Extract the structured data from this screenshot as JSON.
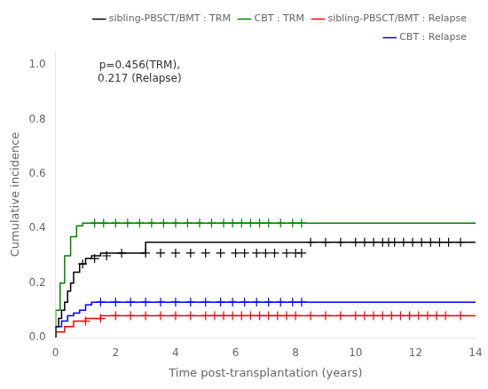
{
  "chart_data": {
    "type": "line",
    "xlabel": "Time post-transplantation (years)",
    "ylabel": "Cumulative incidence",
    "annotation": "p=0.456(TRM),\n0.217 (Relapse)",
    "xlim": [
      0,
      14
    ],
    "ylim": [
      0,
      1.05
    ],
    "xticks": [
      0,
      2,
      4,
      6,
      8,
      10,
      12,
      14
    ],
    "yticks": [
      {
        "value": 0.0,
        "label": "0.0"
      },
      0.2,
      0.4,
      0.6,
      0.8,
      {
        "value": 1.0,
        "label": "1.0"
      }
    ],
    "grid": false,
    "legend": "upper right",
    "series": [
      {
        "name": "sibling-PBSCT/BMT : TRM",
        "color": "black",
        "line_style": "step",
        "marker": "plus",
        "x": [
          0,
          0.1,
          0.2,
          0.3,
          0.4,
          0.5,
          0.6,
          0.8,
          1.0,
          1.2,
          1.5,
          1.8,
          2.0,
          2.5,
          3.0,
          8.3,
          14.0
        ],
        "values": [
          0,
          0.04,
          0.07,
          0.1,
          0.13,
          0.17,
          0.2,
          0.24,
          0.27,
          0.29,
          0.3,
          0.31,
          0.31,
          0.31,
          0.31,
          0.35,
          0.35
        ],
        "censor_x": [
          0.9,
          1.3,
          1.7,
          2.2,
          3.0,
          3.5,
          4.0,
          4.5,
          5.0,
          5.5,
          6.0,
          6.3,
          6.7,
          7.0,
          7.3,
          7.7,
          8.0,
          8.2,
          8.5,
          9.0,
          9.5,
          10.0,
          10.3,
          10.6,
          10.9,
          11.1,
          11.3,
          11.6,
          11.9,
          12.2,
          12.5,
          12.8,
          13.1,
          13.5
        ],
        "censor_values": [
          0.27,
          0.29,
          0.3,
          0.31,
          0.31,
          0.31,
          0.31,
          0.31,
          0.31,
          0.31,
          0.31,
          0.31,
          0.31,
          0.31,
          0.31,
          0.31,
          0.31,
          0.31,
          0.35,
          0.35,
          0.35,
          0.35,
          0.35,
          0.35,
          0.35,
          0.35,
          0.35,
          0.35,
          0.35,
          0.35,
          0.35,
          0.35,
          0.35,
          0.35
        ]
      },
      {
        "name": "CBT : TRM",
        "color": "green",
        "line_style": "step",
        "marker": "plus",
        "x": [
          0,
          0.15,
          0.3,
          0.5,
          0.7,
          0.9,
          1.0,
          1.2,
          14.0
        ],
        "values": [
          0,
          0.1,
          0.2,
          0.3,
          0.37,
          0.41,
          0.42,
          0.42,
          0.42
        ],
        "censor_x": [
          1.3,
          1.6,
          2.0,
          2.4,
          2.8,
          3.2,
          3.6,
          4.0,
          4.4,
          4.8,
          5.2,
          5.6,
          5.9,
          6.2,
          6.5,
          6.8,
          7.1,
          7.5,
          7.9,
          8.2
        ],
        "censor_values": [
          0.42,
          0.42,
          0.42,
          0.42,
          0.42,
          0.42,
          0.42,
          0.42,
          0.42,
          0.42,
          0.42,
          0.42,
          0.42,
          0.42,
          0.42,
          0.42,
          0.42,
          0.42,
          0.42,
          0.42
        ]
      },
      {
        "name": "sibling-PBSCT/BMT : Relapse",
        "color": "red",
        "line_style": "step",
        "marker": "plus",
        "x": [
          0,
          0.3,
          0.6,
          1.0,
          1.5,
          2.0,
          2.5,
          14.0
        ],
        "values": [
          0,
          0.02,
          0.04,
          0.06,
          0.07,
          0.08,
          0.08,
          0.08
        ],
        "censor_x": [
          1.0,
          1.5,
          2.0,
          2.5,
          3.0,
          3.5,
          4.0,
          4.5,
          5.0,
          5.3,
          5.6,
          5.9,
          6.2,
          6.5,
          6.8,
          7.1,
          7.4,
          7.7,
          8.0,
          8.5,
          9.0,
          9.5,
          10.0,
          10.3,
          10.6,
          10.9,
          11.2,
          11.5,
          11.8,
          12.1,
          12.4,
          12.7,
          13.0,
          13.5
        ],
        "censor_values": [
          0.06,
          0.07,
          0.08,
          0.08,
          0.08,
          0.08,
          0.08,
          0.08,
          0.08,
          0.08,
          0.08,
          0.08,
          0.08,
          0.08,
          0.08,
          0.08,
          0.08,
          0.08,
          0.08,
          0.08,
          0.08,
          0.08,
          0.08,
          0.08,
          0.08,
          0.08,
          0.08,
          0.08,
          0.08,
          0.08,
          0.08,
          0.08,
          0.08,
          0.08
        ]
      },
      {
        "name": "CBT : Relapse",
        "color": "blue",
        "line_style": "step",
        "marker": "plus",
        "x": [
          0,
          0.2,
          0.4,
          0.6,
          0.8,
          1.0,
          1.2,
          1.5,
          2.0,
          14.0
        ],
        "values": [
          0,
          0.04,
          0.06,
          0.08,
          0.09,
          0.1,
          0.12,
          0.13,
          0.13,
          0.13
        ],
        "censor_x": [
          1.5,
          2.0,
          2.5,
          3.0,
          3.5,
          4.0,
          4.5,
          5.0,
          5.5,
          5.9,
          6.3,
          6.7,
          7.1,
          7.5,
          7.9,
          8.2
        ],
        "censor_values": [
          0.13,
          0.13,
          0.13,
          0.13,
          0.13,
          0.13,
          0.13,
          0.13,
          0.13,
          0.13,
          0.13,
          0.13,
          0.13,
          0.13,
          0.13,
          0.13
        ]
      }
    ]
  }
}
